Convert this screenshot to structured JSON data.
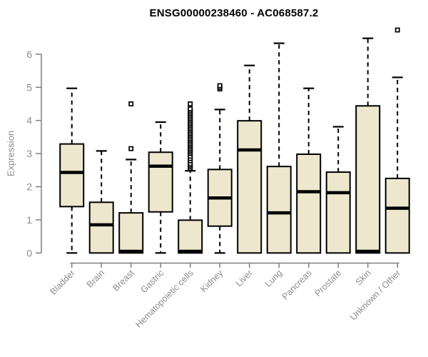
{
  "chart_data": {
    "type": "boxplot",
    "title": "ENSG00000238460 - AC068587.2",
    "xlabel": "",
    "ylabel": "Expression",
    "ylim": [
      0,
      6.9
    ],
    "y_ticks": [
      0,
      1,
      2,
      3,
      4,
      5,
      6
    ],
    "grid": false,
    "legend": null,
    "colors": {
      "box_fill": "#EDE8CD",
      "box_border": "#000000",
      "median": "#000000",
      "whisker": "#000000",
      "outlier": "#000000",
      "axis_line": "#7f7f7f",
      "axis_text": "#8c8c8c",
      "title_text": "#000000"
    },
    "categories": [
      "Bladder",
      "Brain",
      "Breast",
      "Gastric",
      "Hematopoietic cells",
      "Kidney",
      "Liver",
      "Lung",
      "Pancreas",
      "Prostate",
      "Skin",
      "Unknown / Other"
    ],
    "boxes": [
      {
        "label": "Bladder",
        "lower": 0,
        "q1": 1.4,
        "median": 2.43,
        "q3": 3.29,
        "upper": 4.97,
        "outliers": []
      },
      {
        "label": "Brain",
        "lower": 0,
        "q1": 0.0,
        "median": 0.85,
        "q3": 1.53,
        "upper": 3.08,
        "outliers": []
      },
      {
        "label": "Breast",
        "lower": 0,
        "q1": 0.0,
        "median": 0.05,
        "q3": 1.21,
        "upper": 2.82,
        "outliers": [
          3.15,
          4.5
        ]
      },
      {
        "label": "Gastric",
        "lower": 0,
        "q1": 1.24,
        "median": 2.62,
        "q3": 3.04,
        "upper": 3.95,
        "outliers": []
      },
      {
        "label": "Hematopoietic cells",
        "lower": 0,
        "q1": 0.0,
        "median": 0.05,
        "q3": 0.99,
        "upper": 2.48,
        "outliers": [
          2.55,
          2.6,
          2.65,
          2.7,
          2.78,
          2.85,
          2.92,
          3.0,
          3.05,
          3.1,
          3.15,
          3.2,
          3.25,
          3.3,
          3.35,
          3.4,
          3.45,
          3.5,
          3.55,
          3.6,
          3.65,
          3.7,
          3.75,
          3.8,
          3.85,
          3.9,
          3.95,
          4.0,
          4.05,
          4.1,
          4.15,
          4.2,
          4.25,
          4.3,
          4.35,
          4.5
        ]
      },
      {
        "label": "Kidney",
        "lower": 0,
        "q1": 0.81,
        "median": 1.66,
        "q3": 2.52,
        "upper": 4.33,
        "outliers": [
          4.95,
          5.0,
          5.05
        ]
      },
      {
        "label": "Liver",
        "lower": 0,
        "q1": 0.0,
        "median": 3.11,
        "q3": 3.99,
        "upper": 5.66,
        "outliers": []
      },
      {
        "label": "Lung",
        "lower": 0,
        "q1": 0.0,
        "median": 1.21,
        "q3": 2.61,
        "upper": 6.33,
        "outliers": []
      },
      {
        "label": "Pancreas",
        "lower": 0,
        "q1": 0.0,
        "median": 1.85,
        "q3": 2.98,
        "upper": 4.97,
        "outliers": []
      },
      {
        "label": "Prostate",
        "lower": 0,
        "q1": 0.0,
        "median": 1.82,
        "q3": 2.44,
        "upper": 3.81,
        "outliers": []
      },
      {
        "label": "Skin",
        "lower": 0,
        "q1": 0.0,
        "median": 0.05,
        "q3": 4.44,
        "upper": 6.48,
        "outliers": []
      },
      {
        "label": "Unknown / Other",
        "lower": 0,
        "q1": 0.0,
        "median": 1.35,
        "q3": 2.25,
        "upper": 5.3,
        "outliers": [
          6.73
        ]
      }
    ]
  }
}
